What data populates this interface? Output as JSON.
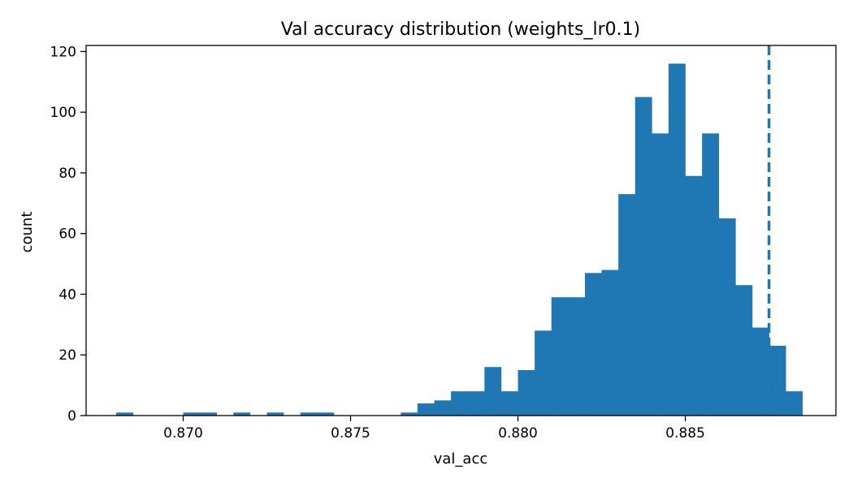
{
  "chart_data": {
    "type": "histogram",
    "title": "Val accuracy distribution (weights_lr0.1)",
    "xlabel": "val_acc",
    "ylabel": "count",
    "xlim": [
      0.8671,
      0.8895
    ],
    "ylim": [
      0,
      122
    ],
    "xticks": [
      0.87,
      0.875,
      0.88,
      0.885
    ],
    "xtick_labels": [
      "0.870",
      "0.875",
      "0.880",
      "0.885"
    ],
    "yticks": [
      0,
      20,
      40,
      60,
      80,
      100,
      120
    ],
    "ytick_labels": [
      "0",
      "20",
      "40",
      "60",
      "80",
      "100",
      "120"
    ],
    "bin_start": 0.868,
    "bin_width": 0.0005,
    "counts": [
      1,
      0,
      0,
      0,
      1,
      1,
      0,
      1,
      0,
      1,
      0,
      1,
      1,
      0,
      0,
      0,
      0,
      1,
      4,
      5,
      8,
      8,
      16,
      8,
      15,
      28,
      39,
      39,
      47,
      48,
      73,
      105,
      93,
      116,
      79,
      93,
      65,
      43,
      29,
      23,
      8
    ],
    "color": "#1f77b4",
    "grid": false,
    "reference_line": {
      "x": 0.8875,
      "style": "dashed",
      "color": "#1f77b4"
    }
  }
}
